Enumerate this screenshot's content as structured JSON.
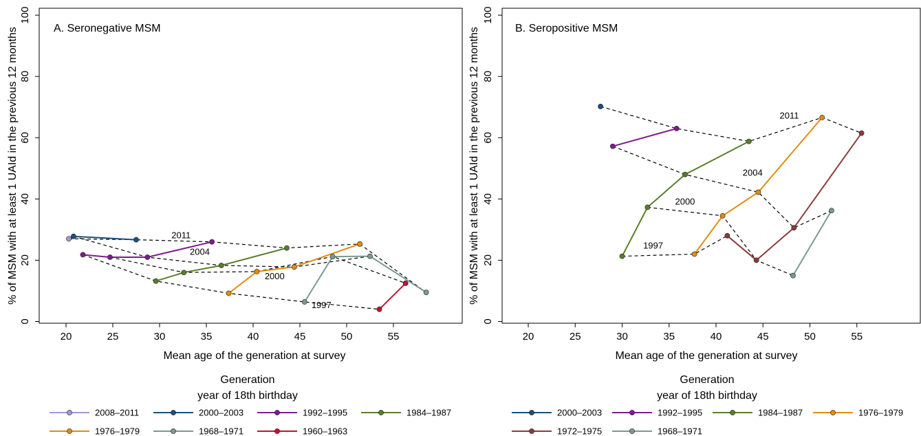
{
  "chart_data": [
    {
      "type": "line",
      "title": "A. Seronegative MSM",
      "xlabel": "Mean age of the generation at survey",
      "ylabel": "% of MSM with at least 1 UAId in the previous 12 months",
      "xlim": [
        17,
        60
      ],
      "ylim": [
        0,
        100
      ],
      "x_ticks": [
        20,
        25,
        30,
        35,
        40,
        45,
        50,
        55
      ],
      "y_ticks": [
        0,
        20,
        40,
        60,
        80,
        100
      ],
      "grid": false,
      "series": [
        {
          "name": "2008–2011",
          "color": "#9e9ad6",
          "points": [
            [
              20.3,
              27
            ]
          ]
        },
        {
          "name": "2000–2003",
          "color": "#1f4e79",
          "points": [
            [
              20.8,
              27.8
            ],
            [
              27.5,
              26.7
            ]
          ]
        },
        {
          "name": "1992–1995",
          "color": "#7b1d8e",
          "points": [
            [
              21.8,
              21.8
            ],
            [
              24.7,
              21
            ],
            [
              28.7,
              21
            ],
            [
              35.6,
              26
            ]
          ]
        },
        {
          "name": "1984–1987",
          "color": "#5a7d2a",
          "points": [
            [
              29.6,
              13.2
            ],
            [
              32.6,
              16
            ],
            [
              36.6,
              18.3
            ],
            [
              43.6,
              24
            ]
          ]
        },
        {
          "name": "1976–1979",
          "color": "#e08c0f",
          "points": [
            [
              37.4,
              9.2
            ],
            [
              40.4,
              16.3
            ],
            [
              44.4,
              17.8
            ],
            [
              51.4,
              25.3
            ]
          ]
        },
        {
          "name": "1968–1971",
          "color": "#7a9a8f",
          "points": [
            [
              45.5,
              6.4
            ],
            [
              48.5,
              21.2
            ],
            [
              52.5,
              21.3
            ],
            [
              58.5,
              9.5
            ]
          ]
        },
        {
          "name": "1960–1963",
          "color": "#c8102e",
          "points": [
            [
              53.5,
              4
            ],
            [
              56.3,
              12.5
            ]
          ]
        }
      ],
      "survey_connectors": [
        {
          "label": "2011",
          "points": [
            [
              20.3,
              27
            ],
            [
              27.5,
              26.7
            ],
            [
              35.6,
              26
            ],
            [
              43.6,
              24
            ],
            [
              51.4,
              25.3
            ],
            [
              58.5,
              9.5
            ]
          ]
        },
        {
          "label": "2004",
          "points": [
            [
              20.8,
              27.8
            ],
            [
              28.7,
              21
            ],
            [
              36.6,
              18.3
            ],
            [
              44.4,
              17.8
            ],
            [
              52.5,
              21.3
            ]
          ]
        },
        {
          "label": "2000",
          "points": [
            [
              24.7,
              21
            ],
            [
              32.6,
              16
            ],
            [
              40.4,
              16.3
            ],
            [
              48.5,
              21.2
            ],
            [
              56.3,
              12.5
            ]
          ]
        },
        {
          "label": "1997",
          "points": [
            [
              21.8,
              21.8
            ],
            [
              29.6,
              13.2
            ],
            [
              37.4,
              9.2
            ],
            [
              45.5,
              6.4
            ],
            [
              53.5,
              4
            ]
          ]
        }
      ],
      "year_label_positions": [
        {
          "label": "2011",
          "x": 32.3,
          "y": 27.2
        },
        {
          "label": "2004",
          "x": 34.3,
          "y": 21.8
        },
        {
          "label": "2000",
          "x": 42.3,
          "y": 13.8
        },
        {
          "label": "1997",
          "x": 47.3,
          "y": 4.4
        }
      ]
    },
    {
      "type": "line",
      "title": "B. Seropositive MSM",
      "xlabel": "Mean age of the generation at survey",
      "ylabel": "% of MSM with at least 1 UAId in the previous 12 months",
      "xlim": [
        17,
        60
      ],
      "ylim": [
        0,
        100
      ],
      "x_ticks": [
        20,
        25,
        30,
        35,
        40,
        45,
        50,
        55
      ],
      "y_ticks": [
        0,
        20,
        40,
        60,
        80,
        100
      ],
      "grid": false,
      "series": [
        {
          "name": "2000–2003",
          "color": "#1f4e79",
          "points": [
            [
              27.7,
              70.2
            ]
          ]
        },
        {
          "name": "1992–1995",
          "color": "#7b1d8e",
          "points": [
            [
              29,
              57.2
            ],
            [
              35.8,
              63
            ]
          ]
        },
        {
          "name": "1984–1987",
          "color": "#5a7d2a",
          "points": [
            [
              30,
              21.3
            ],
            [
              32.7,
              37.3
            ],
            [
              36.7,
              48
            ],
            [
              43.5,
              58.8
            ]
          ]
        },
        {
          "name": "1976–1979",
          "color": "#e08c0f",
          "points": [
            [
              37.7,
              22
            ],
            [
              40.7,
              34.5
            ],
            [
              44.5,
              42.2
            ],
            [
              51.3,
              66.6
            ]
          ]
        },
        {
          "name": "1972–1975",
          "color": "#8c3b3b",
          "points": [
            [
              41.2,
              28
            ],
            [
              44.3,
              20
            ],
            [
              48.3,
              30.6
            ],
            [
              55.5,
              61.5
            ]
          ]
        },
        {
          "name": "1968–1971",
          "color": "#7a9a8f",
          "points": [
            [
              48.2,
              15
            ],
            [
              52.3,
              36.2
            ]
          ]
        }
      ],
      "survey_connectors": [
        {
          "label": "2011",
          "points": [
            [
              27.7,
              70.2
            ],
            [
              35.8,
              63
            ],
            [
              43.5,
              58.8
            ],
            [
              51.3,
              66.6
            ],
            [
              55.5,
              61.5
            ]
          ]
        },
        {
          "label": "2004",
          "points": [
            [
              29,
              57.2
            ],
            [
              36.7,
              48
            ],
            [
              44.5,
              42.2
            ],
            [
              48.3,
              30.6
            ],
            [
              52.3,
              36.2
            ]
          ]
        },
        {
          "label": "2000",
          "points": [
            [
              32.7,
              37.3
            ],
            [
              40.7,
              34.5
            ],
            [
              44.3,
              20
            ],
            [
              48.2,
              15
            ]
          ]
        },
        {
          "label": "1997",
          "points": [
            [
              30,
              21.3
            ],
            [
              37.7,
              22
            ],
            [
              41.2,
              28
            ]
          ]
        }
      ],
      "year_label_positions": [
        {
          "label": "2011",
          "x": 47.8,
          "y": 66.2
        },
        {
          "label": "2004",
          "x": 43.9,
          "y": 47.6
        },
        {
          "label": "2000",
          "x": 36.7,
          "y": 38.2
        },
        {
          "label": "1997",
          "x": 33.3,
          "y": 23.8
        }
      ]
    }
  ],
  "legend": {
    "title_line1": "Generation",
    "title_line2": "year of 18th birthday"
  },
  "colors": {
    "2008–2011": "#9e9ad6",
    "2000–2003": "#1f4e79",
    "1992–1995": "#7b1d8e",
    "1984–1987": "#5a7d2a",
    "1976–1979": "#e08c0f",
    "1972–1975": "#8c3b3b",
    "1968–1971": "#7a9a8f",
    "1960–1963": "#c8102e"
  }
}
